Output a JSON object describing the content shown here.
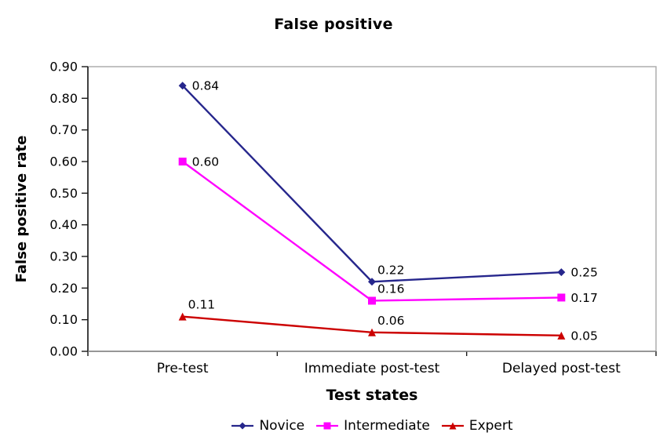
{
  "chart_data": {
    "type": "line",
    "title": "False positive",
    "xlabel": "Test states",
    "ylabel": "False positive rate",
    "ylim": [
      0,
      0.9
    ],
    "y_tick_step": 0.1,
    "y_tick_labels": [
      "0.00",
      "0.10",
      "0.20",
      "0.30",
      "0.40",
      "0.50",
      "0.60",
      "0.70",
      "0.80",
      "0.90"
    ],
    "grid": false,
    "legend_position": "bottom",
    "categories": [
      "Pre-test",
      "Immediate post-test",
      "Delayed post-test"
    ],
    "series": [
      {
        "name": "Novice",
        "color": "#26268C",
        "marker": "diamond",
        "values": [
          0.84,
          0.22,
          0.25
        ],
        "point_labels": [
          "0.84",
          "0.22",
          "0.25"
        ],
        "label_pos": [
          "right",
          "above",
          "right"
        ]
      },
      {
        "name": "Intermediate",
        "color": "#FF00FF",
        "marker": "square",
        "values": [
          0.6,
          0.16,
          0.17
        ],
        "point_labels": [
          "0.60",
          "0.16",
          "0.17"
        ],
        "label_pos": [
          "right",
          "above",
          "right"
        ]
      },
      {
        "name": "Expert",
        "color": "#CC0000",
        "marker": "triangle",
        "values": [
          0.11,
          0.06,
          0.05
        ],
        "point_labels": [
          "0.11",
          "0.06",
          "0.05"
        ],
        "label_pos": [
          "above",
          "above",
          "right"
        ]
      }
    ],
    "colors": {
      "frame": "#A9A9A9",
      "axis_left": "#1a1a1a",
      "axis_bottom": "#808080",
      "tick": "#1a1a1a",
      "text": "#000000"
    }
  }
}
